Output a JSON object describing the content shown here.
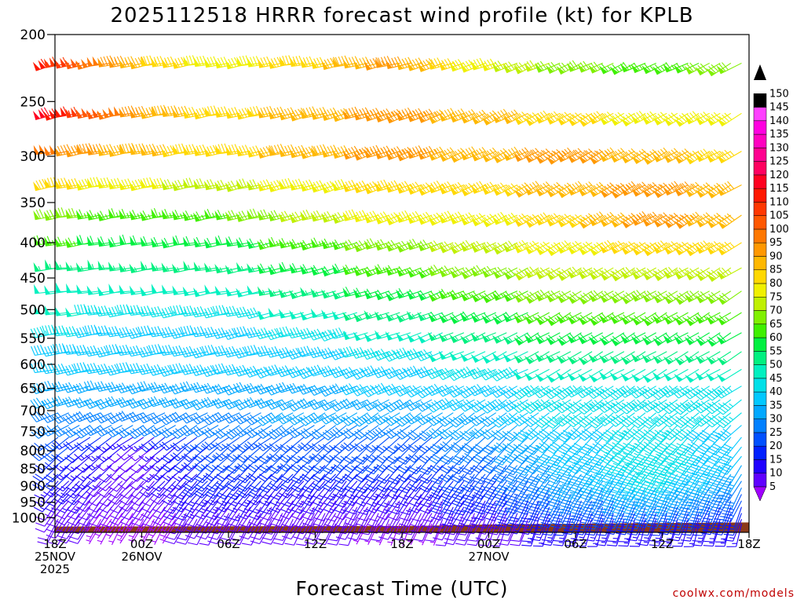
{
  "chart_data": {
    "type": "wind-barb-time-height",
    "title": "2025112518 HRRR forecast wind profile (kt) for KPLB",
    "xlabel": "Forecast Time (UTC)",
    "ylabel": "",
    "credit": "coolwx.com/models",
    "x_range_hours": [
      0,
      48
    ],
    "x_ticks": [
      {
        "hour": 0,
        "lines": [
          "18Z",
          "25NOV",
          "2025"
        ]
      },
      {
        "hour": 6,
        "lines": [
          "00Z",
          "26NOV"
        ]
      },
      {
        "hour": 12,
        "lines": [
          "06Z"
        ]
      },
      {
        "hour": 18,
        "lines": [
          "12Z"
        ]
      },
      {
        "hour": 24,
        "lines": [
          "18Z"
        ]
      },
      {
        "hour": 30,
        "lines": [
          "00Z",
          "27NOV"
        ]
      },
      {
        "hour": 36,
        "lines": [
          "06Z"
        ]
      },
      {
        "hour": 42,
        "lines": [
          "12Z"
        ]
      },
      {
        "hour": 48,
        "lines": [
          "18Z"
        ]
      }
    ],
    "y_axis": "pressure (hPa), reversed log",
    "y_ticks": [
      200,
      250,
      300,
      350,
      400,
      450,
      500,
      550,
      600,
      650,
      700,
      750,
      800,
      850,
      900,
      950,
      1000
    ],
    "y_range": [
      200,
      1050
    ],
    "surface_pressure": [
      {
        "hour": 0,
        "p": 1030
      },
      {
        "hour": 25,
        "p": 1028
      },
      {
        "hour": 31,
        "p": 1022
      },
      {
        "hour": 39,
        "p": 1019
      },
      {
        "hour": 48,
        "p": 1016
      }
    ],
    "levels_hpa": [
      220,
      260,
      295,
      330,
      365,
      400,
      435,
      470,
      505,
      540,
      575,
      610,
      645,
      675,
      705,
      735,
      765,
      790,
      815,
      840,
      865,
      885,
      905,
      925,
      945,
      965,
      985,
      1005,
      1020
    ],
    "wind_field": {
      "units": "kt",
      "note": "approximate speeds (kt) and directions (deg, from) by level, at hours 0,6,12,18,24,30,36,42,48",
      "rows": [
        {
          "p": 220,
          "speed": [
            115,
            90,
            80,
            85,
            95,
            80,
            70,
            65,
            70
          ],
          "dir": [
            255,
            260,
            260,
            260,
            255,
            250,
            245,
            245,
            240
          ]
        },
        {
          "p": 260,
          "speed": [
            120,
            95,
            85,
            90,
            95,
            90,
            85,
            80,
            80
          ],
          "dir": [
            255,
            260,
            260,
            255,
            250,
            245,
            240,
            240,
            240
          ]
        },
        {
          "p": 295,
          "speed": [
            100,
            90,
            85,
            90,
            95,
            90,
            95,
            90,
            85
          ],
          "dir": [
            260,
            260,
            260,
            255,
            250,
            245,
            240,
            240,
            240
          ]
        },
        {
          "p": 330,
          "speed": [
            85,
            80,
            75,
            80,
            85,
            85,
            90,
            95,
            90
          ],
          "dir": [
            260,
            260,
            258,
            255,
            250,
            245,
            240,
            240,
            240
          ]
        },
        {
          "p": 365,
          "speed": [
            70,
            65,
            65,
            75,
            80,
            80,
            85,
            95,
            90
          ],
          "dir": [
            260,
            260,
            258,
            255,
            250,
            245,
            240,
            240,
            238
          ]
        },
        {
          "p": 400,
          "speed": [
            65,
            60,
            60,
            65,
            70,
            75,
            80,
            85,
            85
          ],
          "dir": [
            262,
            262,
            260,
            255,
            250,
            245,
            240,
            240,
            238
          ]
        },
        {
          "p": 435,
          "speed": [
            55,
            55,
            55,
            60,
            65,
            70,
            75,
            75,
            75
          ],
          "dir": [
            265,
            262,
            260,
            255,
            250,
            245,
            240,
            240,
            238
          ]
        },
        {
          "p": 470,
          "speed": [
            50,
            50,
            50,
            55,
            60,
            65,
            70,
            70,
            70
          ],
          "dir": [
            265,
            262,
            260,
            255,
            250,
            245,
            240,
            240,
            238
          ]
        },
        {
          "p": 505,
          "speed": [
            50,
            45,
            45,
            50,
            55,
            60,
            65,
            65,
            65
          ],
          "dir": [
            265,
            262,
            260,
            255,
            250,
            245,
            240,
            240,
            238
          ]
        },
        {
          "p": 540,
          "speed": [
            45,
            40,
            40,
            45,
            50,
            55,
            60,
            60,
            60
          ],
          "dir": [
            262,
            260,
            258,
            255,
            250,
            245,
            240,
            240,
            238
          ]
        },
        {
          "p": 575,
          "speed": [
            40,
            40,
            40,
            40,
            45,
            50,
            55,
            55,
            55
          ],
          "dir": [
            262,
            260,
            258,
            255,
            250,
            245,
            240,
            240,
            238
          ]
        },
        {
          "p": 610,
          "speed": [
            40,
            40,
            40,
            40,
            40,
            45,
            50,
            50,
            50
          ],
          "dir": [
            260,
            258,
            255,
            250,
            248,
            245,
            240,
            240,
            238
          ]
        },
        {
          "p": 645,
          "speed": [
            35,
            35,
            35,
            35,
            40,
            40,
            45,
            45,
            45
          ],
          "dir": [
            255,
            255,
            252,
            250,
            245,
            242,
            238,
            238,
            236
          ]
        },
        {
          "p": 675,
          "speed": [
            35,
            35,
            35,
            35,
            35,
            40,
            45,
            45,
            45
          ],
          "dir": [
            250,
            250,
            248,
            245,
            242,
            240,
            236,
            236,
            234
          ]
        },
        {
          "p": 705,
          "speed": [
            30,
            30,
            30,
            35,
            35,
            35,
            45,
            45,
            45
          ],
          "dir": [
            245,
            245,
            242,
            240,
            238,
            236,
            232,
            232,
            230
          ]
        },
        {
          "p": 735,
          "speed": [
            30,
            30,
            30,
            30,
            30,
            35,
            40,
            45,
            40
          ],
          "dir": [
            240,
            240,
            238,
            236,
            234,
            232,
            228,
            228,
            226
          ]
        },
        {
          "p": 765,
          "speed": [
            25,
            15,
            25,
            25,
            25,
            30,
            40,
            45,
            40
          ],
          "dir": [
            235,
            235,
            234,
            232,
            230,
            228,
            224,
            224,
            222
          ]
        },
        {
          "p": 790,
          "speed": [
            25,
            10,
            25,
            25,
            25,
            30,
            40,
            45,
            40
          ],
          "dir": [
            232,
            232,
            230,
            228,
            226,
            224,
            220,
            220,
            218
          ]
        },
        {
          "p": 815,
          "speed": [
            20,
            10,
            25,
            25,
            25,
            25,
            40,
            45,
            40
          ],
          "dir": [
            230,
            230,
            228,
            226,
            224,
            222,
            218,
            218,
            216
          ]
        },
        {
          "p": 840,
          "speed": [
            20,
            10,
            20,
            20,
            20,
            25,
            35,
            45,
            35
          ],
          "dir": [
            228,
            228,
            226,
            224,
            222,
            220,
            216,
            216,
            214
          ]
        },
        {
          "p": 865,
          "speed": [
            20,
            10,
            20,
            20,
            20,
            25,
            35,
            45,
            35
          ],
          "dir": [
            226,
            226,
            224,
            222,
            220,
            218,
            214,
            214,
            212
          ]
        },
        {
          "p": 885,
          "speed": [
            15,
            10,
            20,
            15,
            15,
            20,
            35,
            40,
            30
          ],
          "dir": [
            224,
            224,
            222,
            220,
            218,
            216,
            212,
            212,
            210
          ]
        },
        {
          "p": 905,
          "speed": [
            15,
            10,
            15,
            15,
            15,
            20,
            30,
            35,
            30
          ],
          "dir": [
            222,
            222,
            220,
            218,
            216,
            214,
            210,
            210,
            208
          ]
        },
        {
          "p": 925,
          "speed": [
            15,
            10,
            15,
            15,
            15,
            20,
            30,
            35,
            25
          ],
          "dir": [
            220,
            220,
            218,
            216,
            214,
            212,
            208,
            208,
            206
          ]
        },
        {
          "p": 945,
          "speed": [
            10,
            10,
            15,
            10,
            10,
            15,
            25,
            30,
            25
          ],
          "dir": [
            218,
            218,
            216,
            214,
            212,
            210,
            206,
            206,
            204
          ]
        },
        {
          "p": 965,
          "speed": [
            10,
            10,
            10,
            10,
            10,
            15,
            25,
            25,
            20
          ],
          "dir": [
            216,
            216,
            214,
            212,
            210,
            208,
            204,
            204,
            202
          ]
        },
        {
          "p": 985,
          "speed": [
            10,
            5,
            10,
            10,
            10,
            10,
            20,
            20,
            20
          ],
          "dir": [
            214,
            214,
            212,
            210,
            208,
            206,
            202,
            202,
            200
          ]
        },
        {
          "p": 1005,
          "speed": [
            10,
            5,
            10,
            10,
            10,
            10,
            15,
            15,
            15
          ],
          "dir": [
            212,
            212,
            210,
            208,
            206,
            204,
            200,
            200,
            198
          ]
        },
        {
          "p": 1020,
          "speed": [
            10,
            5,
            10,
            10,
            5,
            10,
            15,
            15,
            15
          ],
          "dir": [
            210,
            210,
            208,
            206,
            204,
            202,
            198,
            198,
            196
          ]
        }
      ]
    },
    "legend": {
      "values": [
        5,
        10,
        15,
        20,
        25,
        30,
        35,
        40,
        45,
        50,
        55,
        60,
        65,
        70,
        75,
        80,
        85,
        90,
        95,
        100,
        105,
        110,
        115,
        120,
        125,
        130,
        135,
        140,
        145,
        150
      ],
      "colors": [
        "#a000ff",
        "#6000ff",
        "#2000ff",
        "#0020ff",
        "#0050ff",
        "#0080ff",
        "#00a8ff",
        "#00c8ff",
        "#00e0e8",
        "#00f0c0",
        "#00f080",
        "#00f040",
        "#40f000",
        "#80f000",
        "#c0f000",
        "#f0f000",
        "#ffd800",
        "#ffb800",
        "#ff9800",
        "#ff7800",
        "#ff5800",
        "#ff3800",
        "#ff1800",
        "#ff0020",
        "#ff0060",
        "#ff0090",
        "#ff00c0",
        "#ff00e0",
        "#ff40ff",
        "#000000"
      ],
      "marker_colors": {
        "top": "#000000",
        "bottom": "#a000ff"
      }
    },
    "ground_color": "#8b3a1a"
  }
}
